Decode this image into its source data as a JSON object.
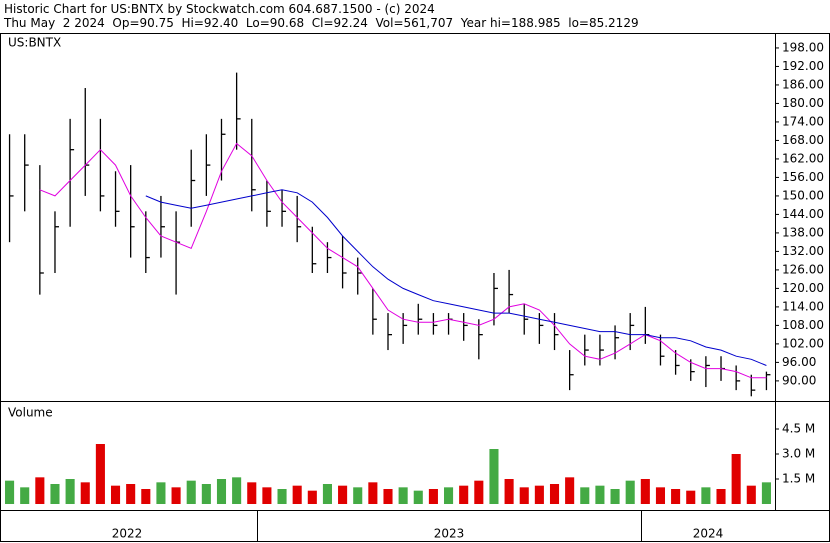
{
  "header": {
    "line1": "Historic Chart for US:BNTX by Stockwatch.com 604.687.1500 - (c) 2024",
    "line2": "Thu May  2 2024  Op=90.75  Hi=92.40  Lo=90.68  Cl=92.24  Vol=561,707  Year hi=188.985  lo=85.2129"
  },
  "x_axis": {
    "labels": [
      "2022",
      "2023",
      "2024"
    ]
  },
  "chart_data": [
    {
      "type": "ohlc",
      "title": "US:BNTX",
      "color": "#000000",
      "high": [
        170,
        170,
        160,
        145,
        175,
        185,
        175,
        158,
        160,
        145,
        150,
        145,
        165,
        170,
        175,
        190,
        175,
        155,
        152,
        150,
        140,
        135,
        137,
        130,
        120,
        112,
        112,
        115,
        112,
        112,
        112,
        110,
        125,
        126,
        115,
        112,
        112,
        100,
        105,
        105,
        108,
        112,
        114,
        105,
        100,
        97,
        98,
        98,
        95,
        92,
        93
      ],
      "low": [
        135,
        145,
        118,
        125,
        140,
        150,
        145,
        140,
        130,
        125,
        130,
        118,
        140,
        150,
        155,
        165,
        145,
        140,
        140,
        135,
        125,
        125,
        120,
        118,
        105,
        100,
        102,
        105,
        105,
        105,
        103,
        97,
        108,
        112,
        105,
        102,
        100,
        87,
        95,
        95,
        97,
        100,
        102,
        95,
        92,
        90,
        88,
        90,
        87,
        85,
        87
      ],
      "close": [
        150,
        160,
        125,
        140,
        165,
        160,
        150,
        145,
        140,
        130,
        140,
        135,
        155,
        160,
        170,
        175,
        152,
        145,
        145,
        140,
        128,
        130,
        125,
        125,
        110,
        105,
        108,
        110,
        108,
        110,
        108,
        105,
        120,
        118,
        110,
        108,
        105,
        92,
        100,
        100,
        104,
        108,
        105,
        98,
        95,
        93,
        95,
        94,
        90,
        87,
        92
      ],
      "series": [
        {
          "color": "#e000e0",
          "values": [
            null,
            null,
            152,
            150,
            155,
            160,
            165,
            160,
            150,
            143,
            137,
            135,
            133,
            145,
            158,
            167,
            163,
            155,
            148,
            143,
            138,
            133,
            130,
            127,
            120,
            113,
            110,
            109,
            109,
            110,
            109,
            108,
            110,
            114,
            115,
            113,
            108,
            102,
            98,
            97,
            99,
            102,
            105,
            103,
            99,
            96,
            94,
            94,
            93,
            91,
            91
          ]
        },
        {
          "color": "#0000cc",
          "values": [
            null,
            null,
            null,
            null,
            null,
            null,
            null,
            null,
            null,
            150,
            148,
            147,
            146,
            147,
            148,
            149,
            150,
            151,
            152,
            151,
            148,
            143,
            137,
            132,
            127,
            123,
            120,
            118,
            116,
            115,
            114,
            113,
            112,
            112,
            111,
            110,
            109,
            108,
            107,
            106,
            106,
            105,
            105,
            104,
            104,
            103,
            101,
            100,
            98,
            97,
            95
          ]
        }
      ],
      "ylim": [
        83.8,
        202.2
      ],
      "yticks": [
        {
          "value": 198,
          "label": "198.00"
        },
        {
          "value": 192,
          "label": "192.00"
        },
        {
          "value": 186,
          "label": "186.00"
        },
        {
          "value": 180,
          "label": "180.00"
        },
        {
          "value": 174,
          "label": "174.00"
        },
        {
          "value": 168,
          "label": "168.00"
        },
        {
          "value": 162,
          "label": "162.00"
        },
        {
          "value": 156,
          "label": "156.00"
        },
        {
          "value": 150,
          "label": "150.00"
        },
        {
          "value": 144,
          "label": "144.00"
        },
        {
          "value": 138,
          "label": "138.00"
        },
        {
          "value": 132,
          "label": "132.00"
        },
        {
          "value": 126,
          "label": "126.00"
        },
        {
          "value": 120,
          "label": "120.00"
        },
        {
          "value": 114,
          "label": "114.00"
        },
        {
          "value": 108,
          "label": "108.00"
        },
        {
          "value": 102,
          "label": "102.00"
        },
        {
          "value": 96,
          "label": "96.00"
        },
        {
          "value": 90,
          "label": "90.00"
        }
      ]
    },
    {
      "type": "bar",
      "title": "Volume",
      "up_color": "#44aa44",
      "down_color": "#e00000",
      "values": [
        1.4,
        1.0,
        1.6,
        1.2,
        1.5,
        1.3,
        3.6,
        1.1,
        1.2,
        0.9,
        1.3,
        1.0,
        1.4,
        1.2,
        1.5,
        1.6,
        1.3,
        1.0,
        0.9,
        1.1,
        0.8,
        1.2,
        1.1,
        1.0,
        1.3,
        0.9,
        1.0,
        0.8,
        0.9,
        1.0,
        1.1,
        1.4,
        3.3,
        1.5,
        1.0,
        1.1,
        1.2,
        1.6,
        1.0,
        1.1,
        0.9,
        1.4,
        1.5,
        1.0,
        0.9,
        0.8,
        1.0,
        0.9,
        3.0,
        1.1,
        1.3
      ],
      "ylim": [
        -0.36,
        6.06
      ],
      "yticks": [
        {
          "value": 4.5,
          "label": "4.5 M"
        },
        {
          "value": 3,
          "label": "3.0 M"
        },
        {
          "value": 1.5,
          "label": "1.5 M"
        }
      ]
    }
  ]
}
